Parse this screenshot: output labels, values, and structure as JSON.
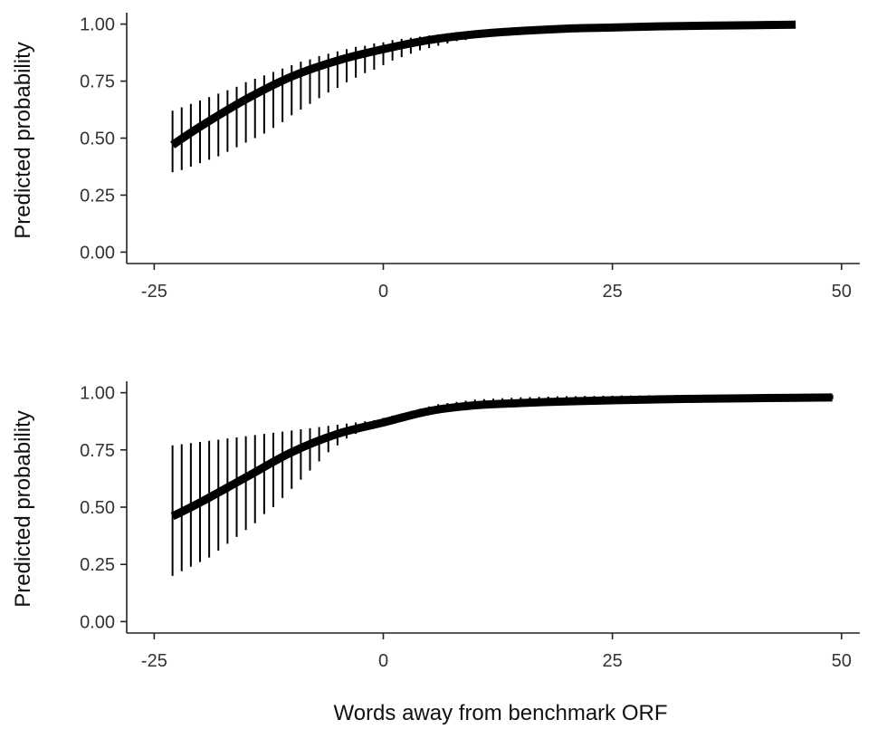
{
  "chart_data": [
    {
      "type": "line",
      "title": "",
      "xlabel": "",
      "ylabel": "Predicted probability",
      "xlim": [
        -28,
        52
      ],
      "ylim": [
        -0.05,
        1.05
      ],
      "x_ticks": [
        -25,
        0,
        25,
        50
      ],
      "x_tick_labels": [
        "-25",
        "0",
        "25",
        "50"
      ],
      "y_ticks": [
        0,
        0.25,
        0.5,
        0.75,
        1
      ],
      "y_tick_labels": [
        "0.00",
        "0.25",
        "0.50",
        "0.75",
        "1.00"
      ],
      "grid": false,
      "legend": "none",
      "colors": {
        "line": "#000000",
        "error_bar": "#000000",
        "axis": "#222222"
      },
      "series": [
        {
          "x": [
            -23,
            -20,
            -15,
            -10,
            -5,
            0,
            5,
            10,
            15,
            20,
            25,
            30,
            35,
            40,
            45
          ],
          "y": [
            0.47,
            0.55,
            0.67,
            0.77,
            0.84,
            0.89,
            0.93,
            0.955,
            0.97,
            0.98,
            0.985,
            0.99,
            0.993,
            0.995,
            0.997
          ]
        }
      ],
      "error_bars": {
        "x": [
          -23,
          -22,
          -21,
          -20,
          -19,
          -18,
          -17,
          -16,
          -15,
          -14,
          -13,
          -12,
          -11,
          -10,
          -9,
          -8,
          -7,
          -6,
          -5,
          -4,
          -3,
          -2,
          -1,
          0,
          1,
          2,
          3,
          4,
          5,
          6,
          7,
          8,
          9,
          10
        ],
        "lower": [
          0.35,
          0.36,
          0.375,
          0.39,
          0.405,
          0.42,
          0.44,
          0.46,
          0.48,
          0.5,
          0.52,
          0.545,
          0.57,
          0.6,
          0.625,
          0.65,
          0.675,
          0.7,
          0.72,
          0.745,
          0.765,
          0.785,
          0.8,
          0.82,
          0.84,
          0.855,
          0.87,
          0.885,
          0.895,
          0.905,
          0.915,
          0.925,
          0.93,
          0.94
        ],
        "upper": [
          0.62,
          0.635,
          0.65,
          0.665,
          0.68,
          0.695,
          0.71,
          0.725,
          0.745,
          0.76,
          0.775,
          0.79,
          0.805,
          0.82,
          0.835,
          0.845,
          0.86,
          0.87,
          0.88,
          0.89,
          0.9,
          0.905,
          0.915,
          0.92,
          0.93,
          0.935,
          0.94,
          0.945,
          0.95,
          0.955,
          0.96,
          0.965,
          0.965,
          0.97
        ]
      }
    },
    {
      "type": "line",
      "title": "",
      "xlabel": "Words away from benchmark ORF",
      "ylabel": "Predicted probability",
      "xlim": [
        -28,
        52
      ],
      "ylim": [
        -0.05,
        1.05
      ],
      "x_ticks": [
        -25,
        0,
        25,
        50
      ],
      "x_tick_labels": [
        "-25",
        "0",
        "25",
        "50"
      ],
      "y_ticks": [
        0,
        0.25,
        0.5,
        0.75,
        1
      ],
      "y_tick_labels": [
        "0.00",
        "0.25",
        "0.50",
        "0.75",
        "1.00"
      ],
      "grid": false,
      "legend": "none",
      "colors": {
        "line": "#000000",
        "error_bar": "#000000",
        "axis": "#222222"
      },
      "series": [
        {
          "x": [
            -23,
            -20,
            -15,
            -10,
            -5,
            0,
            5,
            10,
            15,
            20,
            25,
            30,
            35,
            40,
            45,
            49
          ],
          "y": [
            0.46,
            0.52,
            0.63,
            0.74,
            0.82,
            0.87,
            0.92,
            0.945,
            0.955,
            0.962,
            0.967,
            0.971,
            0.974,
            0.976,
            0.978,
            0.979
          ]
        }
      ],
      "error_bars": {
        "x": [
          -23,
          -22,
          -21,
          -20,
          -19,
          -18,
          -17,
          -16,
          -15,
          -14,
          -13,
          -12,
          -11,
          -10,
          -9,
          -8,
          -7,
          -6,
          -5,
          -4,
          -3,
          -2,
          -1,
          0,
          1,
          2,
          3,
          4,
          5,
          6,
          7,
          8,
          9,
          10,
          11,
          12,
          13,
          14,
          15,
          16,
          17,
          18,
          19,
          20,
          21,
          22,
          23,
          24,
          25,
          26,
          27,
          28,
          29,
          30,
          31,
          32,
          33,
          34,
          35,
          36,
          37,
          38,
          39,
          40,
          41,
          42,
          43,
          44,
          45,
          46,
          47,
          48,
          49
        ],
        "lower": [
          0.2,
          0.22,
          0.24,
          0.26,
          0.28,
          0.31,
          0.34,
          0.37,
          0.4,
          0.43,
          0.47,
          0.5,
          0.54,
          0.58,
          0.62,
          0.66,
          0.7,
          0.74,
          0.77,
          0.8,
          0.82,
          0.84,
          0.855,
          0.865,
          0.88,
          0.895,
          0.905,
          0.91,
          0.915,
          0.92,
          0.925,
          0.93,
          0.93,
          0.935,
          0.94,
          0.94,
          0.945,
          0.945,
          0.948,
          0.95,
          0.952,
          0.954,
          0.955,
          0.956,
          0.957,
          0.958,
          0.959,
          0.96,
          0.96,
          0.961,
          0.962,
          0.963,
          0.964,
          0.964,
          0.965,
          0.966,
          0.966,
          0.967,
          0.967,
          0.968,
          0.968,
          0.969,
          0.969,
          0.97,
          0.97,
          0.97,
          0.971,
          0.971,
          0.971,
          0.972,
          0.972,
          0.972,
          0.972
        ],
        "upper": [
          0.77,
          0.775,
          0.78,
          0.785,
          0.79,
          0.795,
          0.8,
          0.805,
          0.81,
          0.815,
          0.82,
          0.825,
          0.83,
          0.835,
          0.84,
          0.845,
          0.85,
          0.855,
          0.86,
          0.865,
          0.87,
          0.875,
          0.88,
          0.89,
          0.9,
          0.91,
          0.92,
          0.93,
          0.94,
          0.95,
          0.955,
          0.96,
          0.965,
          0.97,
          0.972,
          0.974,
          0.976,
          0.978,
          0.98,
          0.981,
          0.982,
          0.983,
          0.984,
          0.985,
          0.985,
          0.986,
          0.986,
          0.987,
          0.987,
          0.988,
          0.988,
          0.988,
          0.989,
          0.989,
          0.989,
          0.99,
          0.99,
          0.99,
          0.99,
          0.99,
          0.99,
          0.99,
          0.99,
          0.99,
          0.99,
          0.99,
          0.99,
          0.99,
          0.99,
          0.99,
          0.99,
          0.99,
          0.99
        ]
      }
    }
  ]
}
